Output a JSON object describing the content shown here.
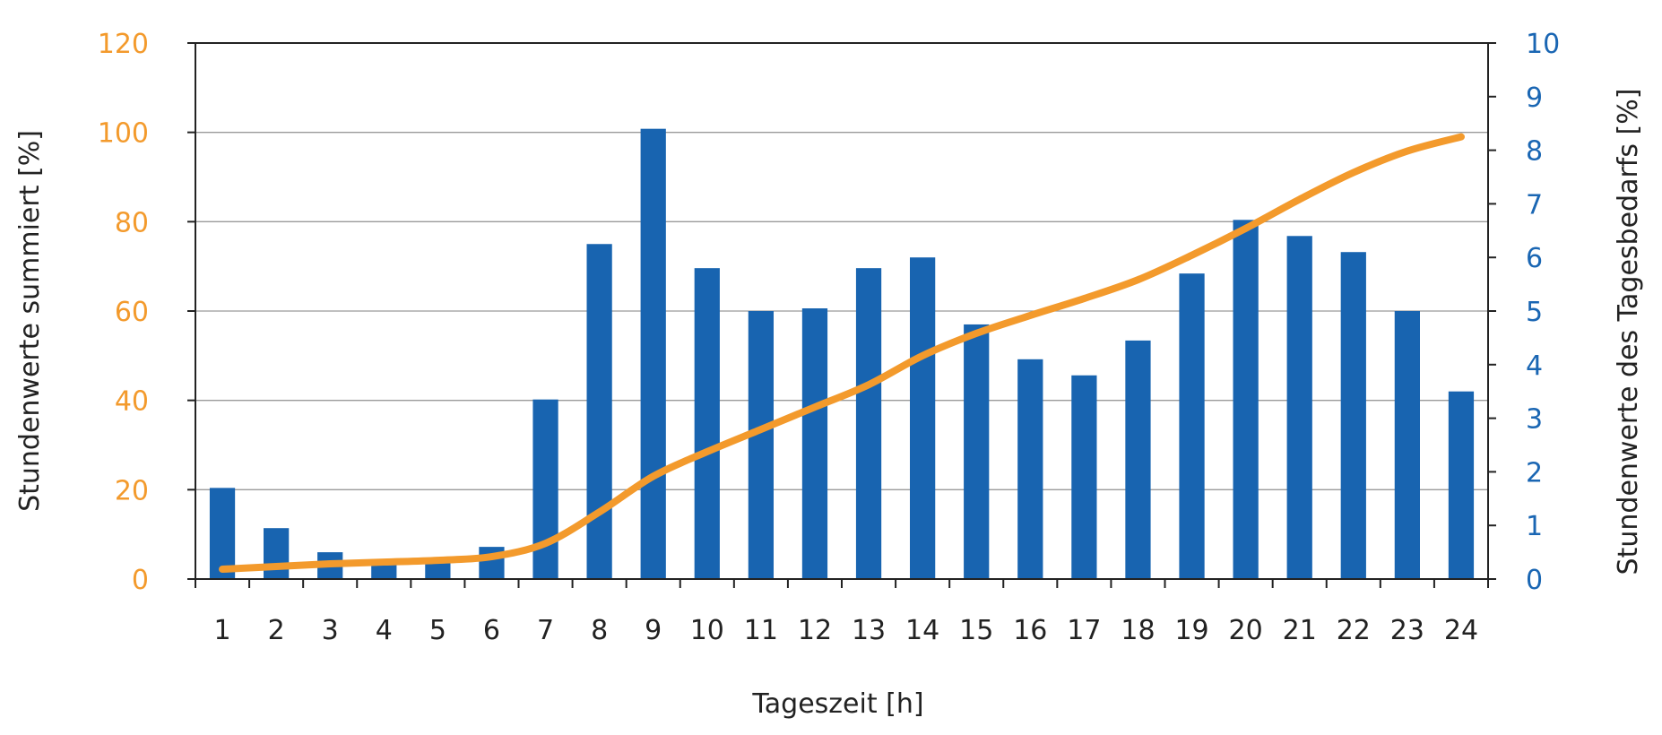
{
  "colors": {
    "bars": "#1864b0",
    "line": "#f39a2c",
    "left_axis_text": "#f39a2c",
    "right_axis_text": "#1a66b3",
    "grid": "#9a9a9a",
    "axis": "#222222"
  },
  "chart_data": {
    "type": "bar",
    "xlabel": "Tageszeit [h]",
    "ylabel_left": "Stundenwerte summiert [%]",
    "ylabel_right": "Stundenwerte des Tagesbedarfs [%]",
    "categories": [
      "1",
      "2",
      "3",
      "4",
      "5",
      "6",
      "7",
      "8",
      "9",
      "10",
      "11",
      "12",
      "13",
      "14",
      "15",
      "16",
      "17",
      "18",
      "19",
      "20",
      "21",
      "22",
      "23",
      "24"
    ],
    "y_left": {
      "min": 0,
      "max": 120,
      "ticks": [
        "0",
        "20",
        "40",
        "60",
        "80",
        "100",
        "120"
      ]
    },
    "y_right": {
      "min": 0,
      "max": 10,
      "ticks": [
        "0",
        "1",
        "2",
        "3",
        "4",
        "5",
        "6",
        "7",
        "8",
        "9",
        "10"
      ]
    },
    "grid": "horizontal at left-axis major ticks",
    "series": [
      {
        "type": "bar",
        "axis": "right",
        "values": [
          1.7,
          0.95,
          0.5,
          0.3,
          0.3,
          0.6,
          3.35,
          6.25,
          8.4,
          5.8,
          5.0,
          5.05,
          5.8,
          6.0,
          4.75,
          4.1,
          3.8,
          4.45,
          5.7,
          6.7,
          6.4,
          6.1,
          5.0,
          3.5
        ]
      },
      {
        "type": "line",
        "axis": "left",
        "values": [
          2.2,
          2.8,
          3.4,
          3.8,
          4.2,
          5.0,
          8.0,
          15.0,
          23.0,
          28.5,
          33.5,
          38.5,
          43.5,
          50.0,
          55.0,
          59.0,
          62.8,
          67.0,
          72.5,
          78.5,
          85.0,
          91.0,
          95.8,
          99.0
        ]
      }
    ]
  }
}
